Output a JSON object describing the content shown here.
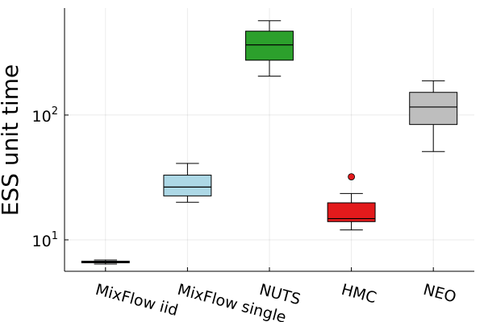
{
  "chart_data": {
    "type": "box",
    "title": "",
    "xlabel": "",
    "ylabel": "ESS unit time",
    "yscale": "log10",
    "ylim": [
      5.6,
      720
    ],
    "yticks": [
      {
        "value": 10,
        "base": "10",
        "exp": "1"
      },
      {
        "value": 100,
        "base": "10",
        "exp": "2"
      }
    ],
    "grid": true,
    "legend": "none",
    "categories": [
      "MixFlow iid",
      "MixFlow single",
      "NUTS",
      "HMC",
      "NEO"
    ],
    "series": [
      {
        "category": "MixFlow iid",
        "color": "#add8e6",
        "whisker_low": 6.4,
        "q1": 6.55,
        "median": 6.65,
        "q3": 6.75,
        "whisker_high": 6.9,
        "outliers": []
      },
      {
        "category": "MixFlow single",
        "color": "#add8e6",
        "whisker_low": 20.0,
        "q1": 22.5,
        "median": 26.5,
        "q3": 33.0,
        "whisker_high": 41.0,
        "outliers": []
      },
      {
        "category": "NUTS",
        "color": "#2ca02c",
        "whisker_low": 205,
        "q1": 275,
        "median": 365,
        "q3": 470,
        "whisker_high": 570,
        "outliers": []
      },
      {
        "category": "HMC",
        "color": "#e31a1c",
        "whisker_low": 12.0,
        "q1": 14.0,
        "median": 14.8,
        "q3": 19.8,
        "whisker_high": 23.5,
        "outliers": [
          32.0
        ]
      },
      {
        "category": "NEO",
        "color": "#bebebe",
        "whisker_low": 51,
        "q1": 84,
        "median": 116,
        "q3": 152,
        "whisker_high": 188,
        "outliers": []
      }
    ]
  }
}
